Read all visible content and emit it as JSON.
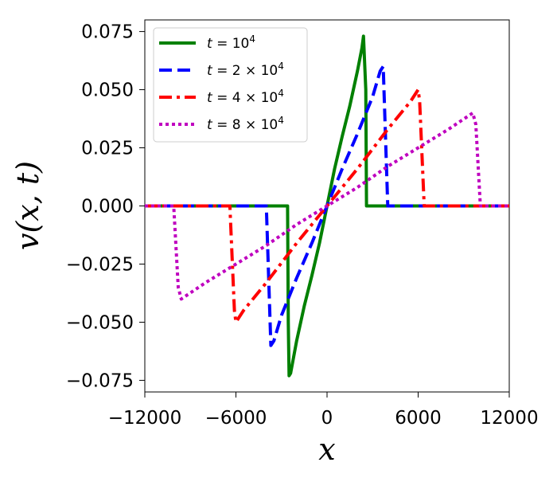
{
  "chart_data": {
    "type": "line",
    "xlabel": "x",
    "ylabel": "v(x, t)",
    "xlim": [
      -12000,
      12000
    ],
    "ylim": [
      -0.08,
      0.08
    ],
    "xticks": [
      -12000,
      -6000,
      0,
      6000,
      12000
    ],
    "xtick_labels": [
      "−12000",
      "−6000",
      "0",
      "6000",
      "12000"
    ],
    "yticks": [
      -0.075,
      -0.05,
      -0.025,
      0,
      0.025,
      0.05,
      0.075
    ],
    "ytick_labels": [
      "−0.075",
      "−0.050",
      "−0.025",
      "0.000",
      "0.025",
      "0.050",
      "0.075"
    ],
    "grid": false,
    "legend_position": "top-left",
    "series": [
      {
        "name": "t = 10^4",
        "label_parts": {
          "prefix": "t = 10",
          "exp": "4"
        },
        "color": "#008000",
        "dash": "solid",
        "x": [
          -12000,
          -2750,
          -2600,
          -2550,
          -2500,
          -2400,
          -2000,
          -1500,
          -1000,
          -500,
          0,
          500,
          1000,
          1500,
          2000,
          2300,
          2400,
          2550,
          2600,
          2750,
          12000
        ],
        "y": [
          0,
          0,
          0,
          -0.05,
          -0.073,
          -0.072,
          -0.058,
          -0.043,
          -0.03,
          -0.016,
          0,
          0.016,
          0.03,
          0.043,
          0.058,
          0.068,
          0.073,
          0.05,
          0,
          0,
          0
        ]
      },
      {
        "name": "t = 2 × 10^4",
        "label_parts": {
          "prefix": "t = 2 × 10",
          "exp": "4"
        },
        "color": "#0000ff",
        "dash": "dashed",
        "x": [
          -12000,
          -4000,
          -3800,
          -3700,
          -3500,
          -3000,
          -2000,
          -1000,
          0,
          1000,
          2000,
          3000,
          3500,
          3700,
          3800,
          4000,
          12000
        ],
        "y": [
          0,
          0,
          -0.04,
          -0.06,
          -0.058,
          -0.047,
          -0.031,
          -0.016,
          0,
          0.016,
          0.031,
          0.047,
          0.058,
          0.06,
          0.04,
          0,
          0
        ]
      },
      {
        "name": "t = 4 × 10^4",
        "label_parts": {
          "prefix": "t = 4 × 10",
          "exp": "4"
        },
        "color": "#ff0000",
        "dash": "dashdot",
        "x": [
          -12000,
          -6400,
          -6100,
          -6000,
          -5500,
          -4000,
          -2000,
          0,
          2000,
          4000,
          5500,
          6000,
          6100,
          6400,
          12000
        ],
        "y": [
          0,
          0,
          -0.045,
          -0.05,
          -0.045,
          -0.033,
          -0.016,
          0,
          0.016,
          0.033,
          0.045,
          0.05,
          0.045,
          0,
          0
        ]
      },
      {
        "name": "t = 8 × 10^4",
        "label_parts": {
          "prefix": "t = 8 × 10",
          "exp": "4"
        },
        "color": "#bf00bf",
        "dash": "dotted",
        "x": [
          -12000,
          -10100,
          -9800,
          -9600,
          -8000,
          -6000,
          -4000,
          -2000,
          0,
          2000,
          4000,
          6000,
          8000,
          9600,
          9800,
          10100,
          12000
        ],
        "y": [
          0,
          0,
          -0.035,
          -0.04,
          -0.033,
          -0.025,
          -0.017,
          -0.008,
          0,
          0.008,
          0.017,
          0.025,
          0.033,
          0.04,
          0.035,
          0,
          0
        ]
      }
    ]
  }
}
